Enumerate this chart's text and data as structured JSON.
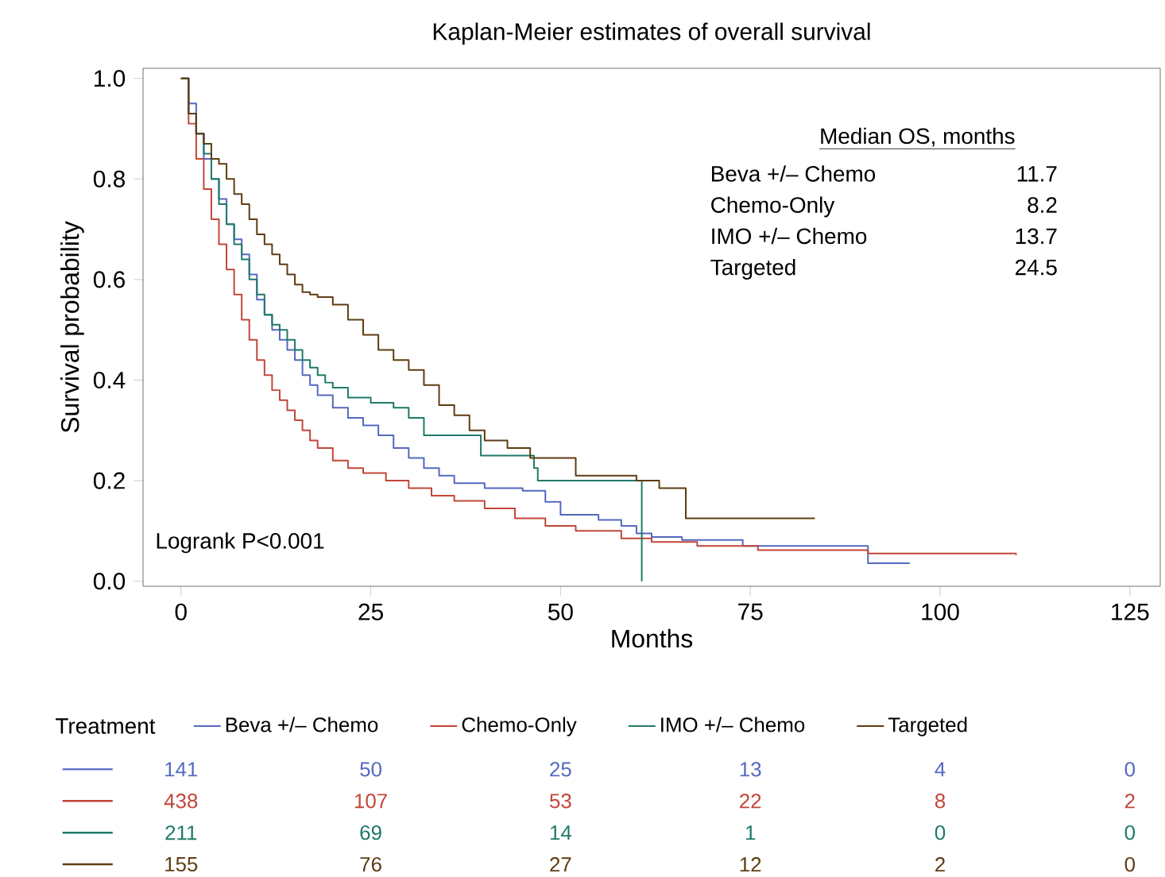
{
  "chart_data": {
    "type": "step",
    "title": "Kaplan-Meier estimates of overall survival",
    "xlabel": "Months",
    "ylabel": "Survival probability",
    "xlim": [
      -5,
      129
    ],
    "ylim": [
      -0.01,
      1.02
    ],
    "xticks": [
      0,
      25,
      50,
      75,
      100,
      125
    ],
    "yticks": [
      {
        "value": 0,
        "label": "0.0"
      },
      0.2,
      0.4,
      0.6,
      0.8,
      {
        "value": 1,
        "label": "1.0"
      }
    ],
    "legend": "bottom",
    "legend_title": "Treatment",
    "series": [
      {
        "name": "Beva +/– Chemo",
        "color": "#5468c0",
        "x": [
          0,
          1,
          2,
          3,
          4,
          5,
          6,
          7,
          8,
          9,
          10,
          11,
          12,
          13,
          14,
          15,
          16,
          17,
          18,
          20,
          22,
          24,
          26,
          28,
          30,
          32,
          34,
          36,
          40,
          45,
          48,
          50,
          55,
          58,
          60,
          62,
          66,
          74,
          90.5,
          96
        ],
        "values": [
          1,
          0.95,
          0.89,
          0.84,
          0.8,
          0.76,
          0.71,
          0.68,
          0.65,
          0.61,
          0.56,
          0.53,
          0.5,
          0.48,
          0.46,
          0.44,
          0.41,
          0.39,
          0.37,
          0.345,
          0.325,
          0.31,
          0.29,
          0.265,
          0.245,
          0.225,
          0.21,
          0.195,
          0.185,
          0.18,
          0.158,
          0.132,
          0.122,
          0.11,
          0.095,
          0.088,
          0.082,
          0.07,
          0.036,
          0.036
        ]
      },
      {
        "name": "Chemo-Only",
        "color": "#c2463a",
        "x": [
          0,
          1,
          2,
          3,
          4,
          5,
          6,
          7,
          8,
          9,
          10,
          11,
          12,
          13,
          14,
          15,
          16,
          17,
          18,
          20,
          22,
          24,
          27,
          30,
          33,
          36,
          40,
          44,
          48,
          52,
          58,
          62,
          68,
          76,
          90.5,
          110
        ],
        "values": [
          1,
          0.91,
          0.84,
          0.78,
          0.72,
          0.67,
          0.62,
          0.57,
          0.52,
          0.48,
          0.44,
          0.41,
          0.38,
          0.36,
          0.34,
          0.32,
          0.3,
          0.28,
          0.265,
          0.24,
          0.225,
          0.215,
          0.2,
          0.185,
          0.17,
          0.16,
          0.145,
          0.125,
          0.11,
          0.1,
          0.085,
          0.078,
          0.07,
          0.062,
          0.055,
          0.052
        ]
      },
      {
        "name": "IMO +/– Chemo",
        "color": "#1f7a68",
        "x": [
          0,
          1,
          2,
          3,
          4,
          5,
          6,
          7,
          8,
          9,
          10,
          11,
          12,
          13,
          14,
          15,
          16,
          17,
          18,
          19,
          20,
          22,
          25,
          28,
          30,
          32,
          39.5,
          46.5,
          47,
          60.7
        ],
        "values": [
          1,
          0.93,
          0.89,
          0.85,
          0.8,
          0.75,
          0.71,
          0.67,
          0.64,
          0.6,
          0.57,
          0.53,
          0.51,
          0.5,
          0.48,
          0.46,
          0.44,
          0.425,
          0.41,
          0.395,
          0.385,
          0.365,
          0.355,
          0.345,
          0.325,
          0.29,
          0.25,
          0.225,
          0.2,
          0
        ]
      },
      {
        "name": "Targeted",
        "color": "#5e3c12",
        "x": [
          0,
          1,
          2,
          3,
          4,
          5,
          6,
          7,
          8,
          9,
          10,
          11,
          12,
          13,
          14,
          15,
          16,
          17,
          18,
          20,
          22,
          24,
          26,
          28,
          30,
          32,
          34,
          36,
          38,
          40,
          43,
          46,
          52,
          60,
          63,
          66.5,
          83.5
        ],
        "values": [
          1,
          0.93,
          0.89,
          0.87,
          0.84,
          0.83,
          0.8,
          0.77,
          0.75,
          0.72,
          0.69,
          0.67,
          0.65,
          0.63,
          0.61,
          0.59,
          0.575,
          0.57,
          0.565,
          0.55,
          0.52,
          0.49,
          0.46,
          0.44,
          0.42,
          0.39,
          0.35,
          0.33,
          0.3,
          0.28,
          0.265,
          0.245,
          0.21,
          0.2,
          0.185,
          0.125,
          0.125
        ]
      }
    ],
    "annotations": [
      "Median OS, months",
      "11.7",
      "8.2",
      "13.7",
      "24.5",
      "Logrank P<0.001",
      "141",
      "50",
      "25",
      "13",
      "4",
      "0",
      "438",
      "107",
      "53",
      "22",
      "8",
      "2",
      "211",
      "69",
      "14",
      "1",
      "0",
      "0",
      "155",
      "76",
      "27",
      "12",
      "2",
      "0"
    ]
  }
}
